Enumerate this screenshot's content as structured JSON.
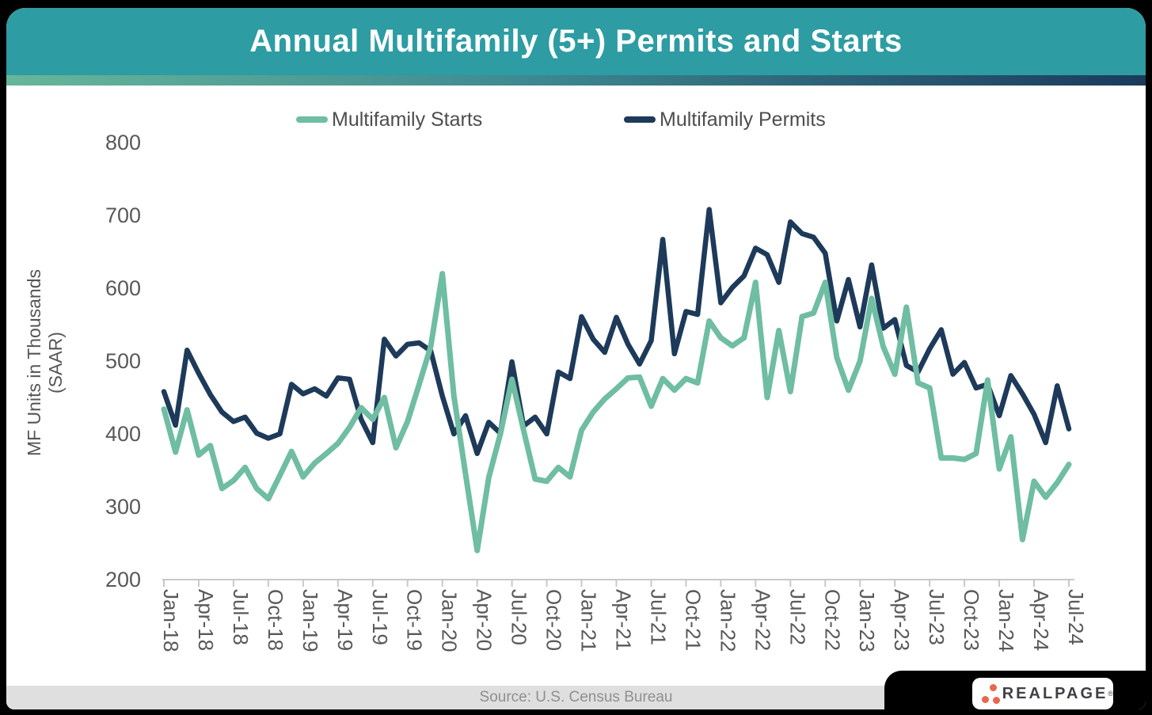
{
  "header": {
    "title": "Annual Multifamily (5+) Permits and Starts"
  },
  "legend": [
    {
      "label": "Multifamily Starts",
      "color": "#6FBDA2"
    },
    {
      "label": "Multifamily Permits",
      "color": "#1E3A5A"
    }
  ],
  "chart_data": {
    "type": "line",
    "title": "Annual Multifamily (5+) Permits and Starts",
    "xlabel": "",
    "ylabel": "MF Units in Thousands (SAAR)",
    "ylabel_lines": [
      "MF Units in Thousands",
      "(SAAR)"
    ],
    "ylim": [
      200,
      800
    ],
    "yticks": [
      200,
      300,
      400,
      500,
      600,
      700,
      800
    ],
    "grid": false,
    "legend_position": "top",
    "x_tick_every": 3,
    "x": [
      "Jan-18",
      "Feb-18",
      "Mar-18",
      "Apr-18",
      "May-18",
      "Jun-18",
      "Jul-18",
      "Aug-18",
      "Sep-18",
      "Oct-18",
      "Nov-18",
      "Dec-18",
      "Jan-19",
      "Feb-19",
      "Mar-19",
      "Apr-19",
      "May-19",
      "Jun-19",
      "Jul-19",
      "Aug-19",
      "Sep-19",
      "Oct-19",
      "Nov-19",
      "Dec-19",
      "Jan-20",
      "Feb-20",
      "Mar-20",
      "Apr-20",
      "May-20",
      "Jun-20",
      "Jul-20",
      "Aug-20",
      "Sep-20",
      "Oct-20",
      "Nov-20",
      "Dec-20",
      "Jan-21",
      "Feb-21",
      "Mar-21",
      "Apr-21",
      "May-21",
      "Jun-21",
      "Jul-21",
      "Aug-21",
      "Sep-21",
      "Oct-21",
      "Nov-21",
      "Dec-21",
      "Jan-22",
      "Feb-22",
      "Mar-22",
      "Apr-22",
      "May-22",
      "Jun-22",
      "Jul-22",
      "Aug-22",
      "Sep-22",
      "Oct-22",
      "Nov-22",
      "Dec-22",
      "Jan-23",
      "Feb-23",
      "Mar-23",
      "Apr-23",
      "May-23",
      "Jun-23",
      "Jul-23",
      "Aug-23",
      "Sep-23",
      "Oct-23",
      "Nov-23",
      "Dec-23",
      "Jan-24",
      "Feb-24",
      "Mar-24",
      "Apr-24",
      "May-24",
      "Jun-24",
      "Jul-24"
    ],
    "series": [
      {
        "name": "Multifamily Starts",
        "color": "#6FBDA2",
        "values": [
          434,
          375,
          433,
          371,
          384,
          325,
          336,
          354,
          325,
          311,
          343,
          376,
          341,
          360,
          373,
          387,
          409,
          436,
          420,
          450,
          381,
          417,
          468,
          520,
          620,
          452,
          345,
          240,
          340,
          400,
          475,
          405,
          338,
          335,
          354,
          341,
          405,
          430,
          448,
          462,
          477,
          478,
          438,
          476,
          460,
          476,
          470,
          555,
          532,
          521,
          532,
          608,
          450,
          542,
          458,
          561,
          566,
          608,
          505,
          460,
          500,
          586,
          520,
          482,
          574,
          470,
          463,
          367,
          367,
          365,
          373,
          474,
          352,
          396,
          255,
          335,
          313,
          333,
          358
        ]
      },
      {
        "name": "Multifamily Permits",
        "color": "#1E3A5A",
        "values": [
          458,
          412,
          515,
          483,
          454,
          430,
          417,
          423,
          401,
          394,
          400,
          468,
          455,
          462,
          452,
          477,
          475,
          420,
          388,
          530,
          507,
          523,
          525,
          514,
          452,
          400,
          425,
          373,
          416,
          401,
          499,
          411,
          423,
          400,
          485,
          476,
          561,
          530,
          512,
          560,
          523,
          496,
          528,
          667,
          510,
          568,
          564,
          708,
          580,
          601,
          617,
          655,
          646,
          608,
          691,
          675,
          670,
          648,
          555,
          612,
          547,
          632,
          545,
          557,
          494,
          485,
          517,
          543,
          482,
          498,
          463,
          468,
          425,
          480,
          455,
          427,
          388,
          466,
          407
        ]
      }
    ]
  },
  "source": {
    "text": "Source: U.S. Census Bureau"
  },
  "logo": {
    "text": "REALPAGE",
    "mark": "®",
    "dots_color": "#E8674D"
  }
}
